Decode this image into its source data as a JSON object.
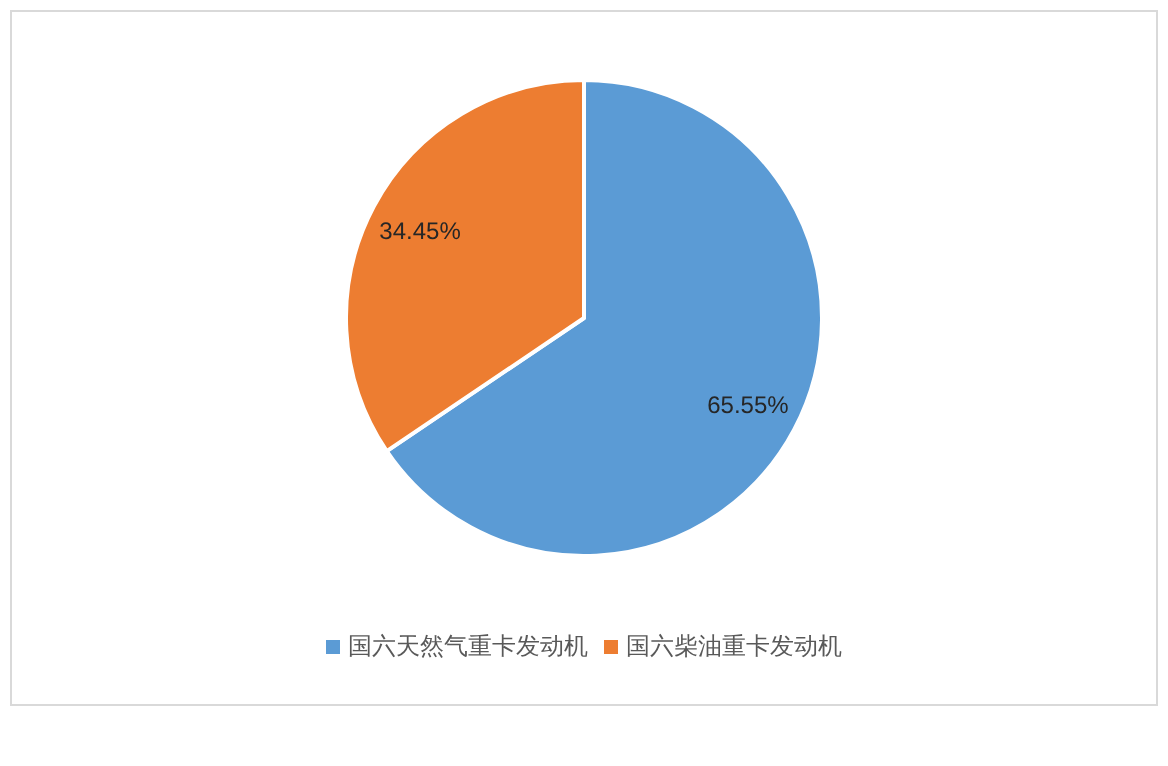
{
  "chart_data": {
    "type": "pie",
    "categories": [
      "国六天然气重卡发动机",
      "国六柴油重卡发动机"
    ],
    "values": [
      65.55,
      34.45
    ],
    "colors": [
      "#5b9bd5",
      "#ed7d31"
    ],
    "value_labels": [
      "65.55%",
      "34.45%"
    ],
    "legend": "bottom"
  }
}
